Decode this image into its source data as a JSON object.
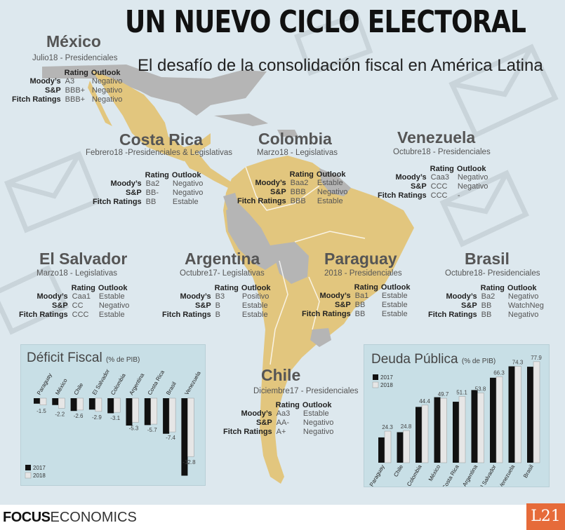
{
  "header": {
    "title": "UN NUEVO CICLO ELECTORAL",
    "subtitle": "El desafío de la consolidación fiscal en América Latina"
  },
  "columns": {
    "rating": "Rating",
    "outlook": "Outlook"
  },
  "countries": [
    {
      "name": "México",
      "election": "Julio18 - Presidenciales",
      "ratings": [
        {
          "agency": "Moody’s",
          "rating": "A3",
          "outlook": "Negativo"
        },
        {
          "agency": "S&P",
          "rating": "BBB+",
          "outlook": "Negativo"
        },
        {
          "agency": "Fitch Ratings",
          "rating": "BBB+",
          "outlook": "Negativo"
        }
      ]
    },
    {
      "name": "Costa Rica",
      "election": "Febrero18 -Presidenciales & Legislativas",
      "ratings": [
        {
          "agency": "Moody’s",
          "rating": "Ba2",
          "outlook": "Negativo"
        },
        {
          "agency": "S&P",
          "rating": "BB-",
          "outlook": "Negativo"
        },
        {
          "agency": "Fitch Ratings",
          "rating": "BB",
          "outlook": "Estable"
        }
      ]
    },
    {
      "name": "Colombia",
      "election": "Marzo18 - Legislativas",
      "ratings": [
        {
          "agency": "Moody’s",
          "rating": "Baa2",
          "outlook": "Estable"
        },
        {
          "agency": "S&P",
          "rating": "BBB",
          "outlook": "Negativo"
        },
        {
          "agency": "Fitch Ratings",
          "rating": "BBB",
          "outlook": "Estable"
        }
      ]
    },
    {
      "name": "Venezuela",
      "election": "Octubre18 - Presidenciales",
      "ratings": [
        {
          "agency": "Moody’s",
          "rating": "Caa3",
          "outlook": "Negativo"
        },
        {
          "agency": "S&P",
          "rating": "CCC",
          "outlook": "Negativo"
        },
        {
          "agency": "Fitch Ratings",
          "rating": "CCC",
          "outlook": "-"
        }
      ]
    },
    {
      "name": "El Salvador",
      "election": "Marzo18 - Legislativas",
      "ratings": [
        {
          "agency": "Moody’s",
          "rating": "Caa1",
          "outlook": "Estable"
        },
        {
          "agency": "S&P",
          "rating": "CC",
          "outlook": "Negativo"
        },
        {
          "agency": "Fitch Ratings",
          "rating": "CCC",
          "outlook": "Estable"
        }
      ]
    },
    {
      "name": "Argentina",
      "election": "Octubre17- Legislativas",
      "ratings": [
        {
          "agency": "Moody’s",
          "rating": "B3",
          "outlook": "Positivo"
        },
        {
          "agency": "S&P",
          "rating": "B",
          "outlook": "Estable"
        },
        {
          "agency": "Fitch Ratings",
          "rating": "B",
          "outlook": "Estable"
        }
      ]
    },
    {
      "name": "Paraguay",
      "election": "2018 - Presidenciales",
      "ratings": [
        {
          "agency": "Moody’s",
          "rating": "Ba1",
          "outlook": "Estable"
        },
        {
          "agency": "S&P",
          "rating": "BB",
          "outlook": "Estable"
        },
        {
          "agency": "Fitch Ratings",
          "rating": "BB",
          "outlook": "Estable"
        }
      ]
    },
    {
      "name": "Brasil",
      "election": "Octubre18-  Presidenciales",
      "ratings": [
        {
          "agency": "Moody’s",
          "rating": "Ba2",
          "outlook": "Negativo"
        },
        {
          "agency": "S&P",
          "rating": "BB",
          "outlook": "WatchNeg"
        },
        {
          "agency": "Fitch Ratings",
          "rating": "BB",
          "outlook": "Negativo"
        }
      ]
    },
    {
      "name": "Chile",
      "election": "Diciembre17 - Presidenciales",
      "ratings": [
        {
          "agency": "Moody’s",
          "rating": "Aa3",
          "outlook": "Estable"
        },
        {
          "agency": "S&P",
          "rating": "AA-",
          "outlook": "Negativo"
        },
        {
          "agency": "Fitch Ratings",
          "rating": "A+",
          "outlook": "Negativo"
        }
      ]
    }
  ],
  "chart_data": [
    {
      "type": "bar",
      "title": "Déficit Fiscal",
      "subtitle": "(% de PIB)",
      "categories": [
        "Paraguay",
        "México",
        "Chile",
        "El Salvador",
        "Colombia",
        "Argentina",
        "Costa Rica",
        "Brasil",
        "Venezuela"
      ],
      "series": [
        {
          "name": "2017",
          "values": [
            -1.2,
            -1.5,
            -2.8,
            -2.5,
            -3.3,
            -6.0,
            -5.9,
            -7.8,
            -17.0
          ]
        },
        {
          "name": "2018",
          "values": [
            -1.5,
            -2.2,
            -2.6,
            -2.9,
            -3.1,
            -5.3,
            -5.7,
            -7.4,
            -12.8
          ]
        }
      ],
      "data_labels": [
        "-1.5",
        "-2.2",
        "-2.6",
        "-2.9",
        "-3.1",
        "-5.3",
        "-5.7",
        "-7.4",
        "-12.8"
      ],
      "legend": "bottom-left",
      "colors": {
        "2017": "#111111",
        "2018": "#e6e6e6"
      }
    },
    {
      "type": "bar",
      "title": "Deuda Pública",
      "subtitle": "(% de PIB)",
      "categories": [
        "Paraguay",
        "Chile",
        "Colombia",
        "México",
        "Costa Rica",
        "Argentina",
        "El Salvador",
        "Venezuela",
        "Brasil"
      ],
      "series": [
        {
          "name": "2017",
          "values": [
            19.5,
            23.5,
            43.0,
            50.5,
            47.0,
            56.0,
            65.5,
            74.3,
            74.0
          ]
        },
        {
          "name": "2018",
          "values": [
            24.3,
            24.8,
            44.4,
            49.7,
            51.1,
            53.8,
            66.3,
            74.3,
            77.9
          ]
        }
      ],
      "data_labels": [
        "24.3",
        "24.8",
        "44.4",
        "49.7",
        "51.1",
        "53.8",
        "66.3",
        "74.3",
        "77.9"
      ],
      "legend": "top-left",
      "colors": {
        "2017": "#111111",
        "2018": "#e6e6e6"
      }
    }
  ],
  "footer": {
    "brand_bold": "FOCUS",
    "brand_light": "ECONOMICS",
    "logo": "L21"
  },
  "colors": {
    "land_highlight": "#e2c67e",
    "land_other": "#b5b5b5",
    "background": "#dde8ee",
    "panel": "#c8dfe6",
    "l21_badge": "#e66b3a"
  }
}
